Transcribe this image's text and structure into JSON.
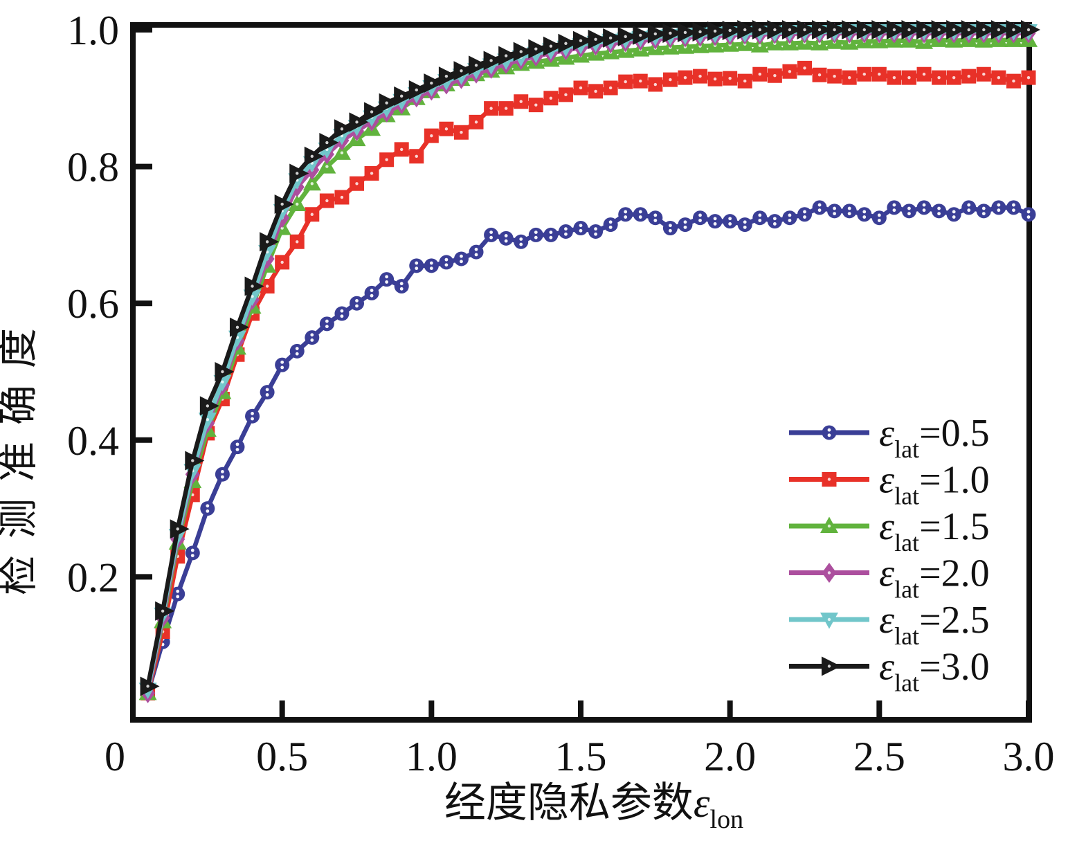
{
  "figure": {
    "background": "#ffffff",
    "axis_color": "#111111",
    "text_color": "#111111"
  },
  "chart_data": {
    "type": "line",
    "title": "",
    "xlabel_text": "经度隐私参数",
    "xlabel_symbol": "ε",
    "xlabel_subscript": "lon",
    "ylabel": "检测准确度",
    "xlim": [
      0,
      3.0
    ],
    "ylim": [
      0,
      1.0
    ],
    "grid": false,
    "legend_position": "lower right",
    "xticks": [
      0,
      0.5,
      1.0,
      1.5,
      2.0,
      2.5,
      3.0
    ],
    "xtick_labels": [
      "0",
      "0.5",
      "1.0",
      "1.5",
      "2.0",
      "2.5",
      "3.0"
    ],
    "yticks": [
      0.2,
      0.4,
      0.6,
      0.8,
      1.0
    ],
    "ytick_labels": [
      "0.2",
      "0.4",
      "0.6",
      "0.8",
      "1.0"
    ],
    "x": [
      0.05,
      0.1,
      0.15,
      0.2,
      0.25,
      0.3,
      0.35,
      0.4,
      0.45,
      0.5,
      0.55,
      0.6,
      0.65,
      0.7,
      0.75,
      0.8,
      0.85,
      0.9,
      0.95,
      1,
      1.05,
      1.1,
      1.15,
      1.2,
      1.25,
      1.3,
      1.35,
      1.4,
      1.45,
      1.5,
      1.55,
      1.6,
      1.65,
      1.7,
      1.75,
      1.8,
      1.85,
      1.9,
      1.95,
      2,
      2.05,
      2.1,
      2.15,
      2.2,
      2.25,
      2.3,
      2.35,
      2.4,
      2.45,
      2.5,
      2.55,
      2.6,
      2.65,
      2.7,
      2.75,
      2.8,
      2.85,
      2.9,
      2.95,
      3
    ],
    "series": [
      {
        "name": "eps_lat_0.5",
        "legend_symbol": "ε",
        "legend_subscript": "lat",
        "legend_value": "=0.5",
        "color": "#3A3E96",
        "marker": "circle",
        "values": [
          0.03,
          0.105,
          0.175,
          0.235,
          0.3,
          0.35,
          0.39,
          0.435,
          0.47,
          0.51,
          0.53,
          0.55,
          0.57,
          0.585,
          0.6,
          0.615,
          0.635,
          0.625,
          0.655,
          0.655,
          0.66,
          0.665,
          0.675,
          0.7,
          0.695,
          0.69,
          0.7,
          0.7,
          0.705,
          0.71,
          0.705,
          0.715,
          0.73,
          0.73,
          0.725,
          0.71,
          0.715,
          0.725,
          0.72,
          0.72,
          0.715,
          0.725,
          0.72,
          0.725,
          0.73,
          0.74,
          0.735,
          0.735,
          0.73,
          0.725,
          0.74,
          0.735,
          0.74,
          0.735,
          0.73,
          0.74,
          0.735,
          0.74,
          0.74,
          0.73
        ]
      },
      {
        "name": "eps_lat_1.0",
        "legend_symbol": "ε",
        "legend_subscript": "lat",
        "legend_value": "=1.0",
        "color": "#E83128",
        "marker": "square",
        "values": [
          0.03,
          0.12,
          0.23,
          0.32,
          0.41,
          0.46,
          0.525,
          0.585,
          0.625,
          0.66,
          0.69,
          0.73,
          0.75,
          0.755,
          0.775,
          0.79,
          0.81,
          0.825,
          0.815,
          0.845,
          0.855,
          0.85,
          0.865,
          0.885,
          0.885,
          0.895,
          0.89,
          0.9,
          0.905,
          0.915,
          0.91,
          0.915,
          0.924,
          0.925,
          0.92,
          0.927,
          0.93,
          0.932,
          0.928,
          0.929,
          0.925,
          0.935,
          0.933,
          0.939,
          0.944,
          0.934,
          0.932,
          0.93,
          0.935,
          0.935,
          0.93,
          0.93,
          0.935,
          0.93,
          0.93,
          0.932,
          0.935,
          0.93,
          0.925,
          0.93
        ]
      },
      {
        "name": "eps_lat_1.5",
        "legend_symbol": "ε",
        "legend_subscript": "lat",
        "legend_value": "=1.5",
        "color": "#61B33D",
        "marker": "triangle-up",
        "values": [
          0.03,
          0.135,
          0.25,
          0.34,
          0.415,
          0.47,
          0.535,
          0.595,
          0.655,
          0.71,
          0.745,
          0.775,
          0.8,
          0.82,
          0.84,
          0.855,
          0.875,
          0.885,
          0.9,
          0.91,
          0.92,
          0.928,
          0.935,
          0.94,
          0.945,
          0.95,
          0.953,
          0.956,
          0.959,
          0.962,
          0.965,
          0.967,
          0.969,
          0.971,
          0.973,
          0.974,
          0.975,
          0.976,
          0.977,
          0.978,
          0.979,
          0.977,
          0.98,
          0.98,
          0.981,
          0.98,
          0.982,
          0.981,
          0.983,
          0.983,
          0.984,
          0.984,
          0.982,
          0.985,
          0.984,
          0.985,
          0.984,
          0.985,
          0.985,
          0.985
        ]
      },
      {
        "name": "eps_lat_2.0",
        "legend_symbol": "ε",
        "legend_subscript": "lat",
        "legend_value": "=2.0",
        "color": "#AC4F9E",
        "marker": "diamond",
        "values": [
          0.03,
          0.14,
          0.255,
          0.35,
          0.425,
          0.48,
          0.545,
          0.605,
          0.665,
          0.725,
          0.77,
          0.795,
          0.818,
          0.838,
          0.852,
          0.866,
          0.879,
          0.891,
          0.901,
          0.911,
          0.92,
          0.928,
          0.936,
          0.943,
          0.95,
          0.956,
          0.961,
          0.966,
          0.97,
          0.974,
          0.977,
          0.98,
          0.982,
          0.984,
          0.986,
          0.988,
          0.989,
          0.99,
          0.991,
          0.992,
          0.993,
          0.993,
          0.994,
          0.994,
          0.995,
          0.995,
          0.995,
          0.995,
          0.995,
          0.995,
          0.995,
          0.995,
          0.995,
          0.995,
          0.995,
          0.995,
          0.995,
          0.995,
          0.995,
          0.995
        ]
      },
      {
        "name": "eps_lat_2.5",
        "legend_symbol": "ε",
        "legend_subscript": "lat",
        "legend_value": "=2.5",
        "color": "#71C6CA",
        "marker": "triangle-down",
        "values": [
          0.035,
          0.145,
          0.26,
          0.355,
          0.43,
          0.485,
          0.55,
          0.61,
          0.675,
          0.735,
          0.78,
          0.805,
          0.825,
          0.845,
          0.858,
          0.872,
          0.885,
          0.896,
          0.906,
          0.916,
          0.925,
          0.933,
          0.941,
          0.948,
          0.955,
          0.96,
          0.965,
          0.97,
          0.974,
          0.978,
          0.981,
          0.984,
          0.986,
          0.988,
          0.99,
          0.991,
          0.992,
          0.993,
          0.994,
          0.995,
          0.995,
          0.996,
          0.996,
          0.997,
          0.997,
          0.997,
          0.997,
          0.998,
          0.998,
          0.998,
          0.998,
          0.998,
          0.998,
          0.998,
          0.998,
          0.998,
          0.998,
          0.998,
          0.998,
          0.998
        ]
      },
      {
        "name": "eps_lat_3.0",
        "legend_symbol": "ε",
        "legend_subscript": "lat",
        "legend_value": "=3.0",
        "color": "#1A1A1A",
        "marker": "triangle-right",
        "values": [
          0.04,
          0.15,
          0.27,
          0.37,
          0.45,
          0.5,
          0.565,
          0.625,
          0.69,
          0.745,
          0.79,
          0.815,
          0.835,
          0.855,
          0.865,
          0.88,
          0.893,
          0.903,
          0.912,
          0.922,
          0.932,
          0.94,
          0.948,
          0.955,
          0.962,
          0.968,
          0.972,
          0.976,
          0.98,
          0.984,
          0.986,
          0.988,
          0.99,
          0.992,
          0.994,
          0.995,
          0.996,
          0.997,
          0.998,
          0.999,
          1,
          1,
          1,
          1,
          1,
          1,
          1,
          1,
          1,
          1,
          1,
          1,
          1,
          1,
          1,
          1,
          1,
          1,
          1,
          1
        ]
      }
    ]
  }
}
